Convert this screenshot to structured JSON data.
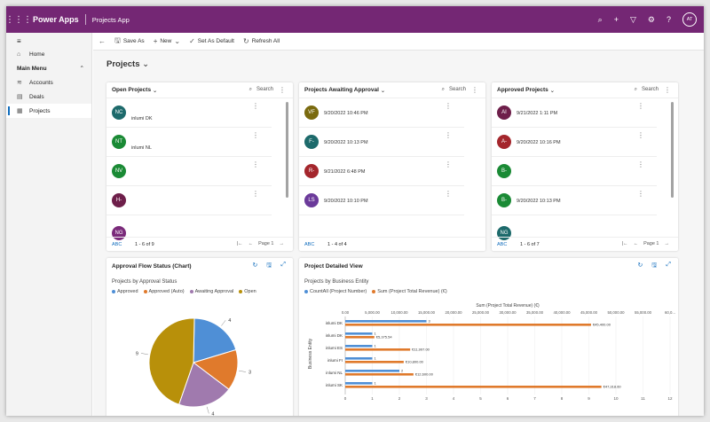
{
  "topbar": {
    "app_name": "Power Apps",
    "sub_name": "Projects App",
    "avatar": "AT"
  },
  "sidebar": {
    "home": "Home",
    "group": "Main Menu",
    "items": [
      {
        "label": "Accounts"
      },
      {
        "label": "Deals"
      },
      {
        "label": "Projects"
      }
    ]
  },
  "cmdbar": {
    "save_as": "Save As",
    "new": "New",
    "set_default": "Set As Default",
    "refresh": "Refresh All"
  },
  "page_title": "Projects",
  "lists": [
    {
      "title": "Open Projects",
      "search": "Search",
      "footer": "1 - 6 of 9",
      "page": "Page 1",
      "records": [
        {
          "initials": "NC",
          "color": "#1d6a6b",
          "l1": "",
          "l2": "inlumi DK"
        },
        {
          "initials": "NT",
          "color": "#1a8a35",
          "l1": "",
          "l2": "inlumi NL"
        },
        {
          "initials": "NV",
          "color": "#1a8a35",
          "l1": "",
          "l2": ""
        },
        {
          "initials": "H-",
          "color": "#6e1f4a",
          "l1": "",
          "l2": ""
        },
        {
          "initials": "NG",
          "color": "#7a2a7a",
          "l1": "",
          "l2": ""
        }
      ]
    },
    {
      "title": "Projects Awaiting Approval",
      "search": "Search",
      "footer": "1 - 4 of 4",
      "page": "",
      "records": [
        {
          "initials": "VF",
          "color": "#7a6a0f",
          "l1": "9/20/2022 10:46 PM",
          "l2": ""
        },
        {
          "initials": "F-",
          "color": "#1d6a6b",
          "l1": "9/20/2022 10:13 PM",
          "l2": ""
        },
        {
          "initials": "R-",
          "color": "#a4262c",
          "l1": "9/21/2022 6:48 PM",
          "l2": ""
        },
        {
          "initials": "LS",
          "color": "#6b3a9a",
          "l1": "9/20/2022 10:10 PM",
          "l2": ""
        }
      ]
    },
    {
      "title": "Approved Projects",
      "search": "Search",
      "footer": "1 - 6 of 7",
      "page": "Page 1",
      "records": [
        {
          "initials": "AI",
          "color": "#6e1f4a",
          "l1": "9/21/2022 1:11 PM",
          "l2": ""
        },
        {
          "initials": "A-",
          "color": "#a4262c",
          "l1": "9/20/2022 10:16 PM",
          "l2": ""
        },
        {
          "initials": "B-",
          "color": "#1a8a35",
          "l1": "",
          "l2": ""
        },
        {
          "initials": "B-",
          "color": "#1a8a35",
          "l1": "9/20/2022 10:13 PM",
          "l2": ""
        },
        {
          "initials": "NG",
          "color": "#1d6a6b",
          "l1": "",
          "l2": ""
        }
      ]
    }
  ],
  "pie_card": {
    "title": "Approval Flow Status (Chart)",
    "subtitle": "Projects by Approval Status"
  },
  "bar_card": {
    "title": "Project Detailed View",
    "subtitle": "Projects by Business Entity"
  },
  "chart_data": [
    {
      "type": "pie",
      "title": "Projects by Approval Status",
      "series": [
        {
          "name": "Approved",
          "value": 4,
          "color": "#4f8fd6"
        },
        {
          "name": "Approved (Auto)",
          "value": 3,
          "color": "#e07a2c"
        },
        {
          "name": "Awaiting Approval",
          "value": 4,
          "color": "#a07aae"
        },
        {
          "name": "Open",
          "value": 9,
          "color": "#b8900a"
        }
      ]
    },
    {
      "type": "bar",
      "title": "Projects by Business Entity",
      "categories": [
        "inlumi DK",
        "inlumi DK",
        "inlumi ES",
        "inlumi FI",
        "inlumi NL",
        "inlumi SK"
      ],
      "ylabel": "Business Entity",
      "x2label": "Sum (Project Total Revenue) (€)",
      "series": [
        {
          "name": "CountAll (Project Number)",
          "color": "#4f8fd6",
          "values": [
            3,
            1,
            1,
            1,
            2,
            1
          ],
          "labels": [
            "3",
            "1",
            "1",
            "1",
            "2",
            "1"
          ]
        },
        {
          "name": "Sum (Project Total Revenue) (€)",
          "color": "#e07a2c",
          "values": [
            45400,
            5375.54,
            11997,
            10800,
            12600,
            47318.6
          ],
          "labels": [
            "€45,400.00",
            "€5,375.54",
            "€11,997.00",
            "€10,800.00",
            "€12,600.00",
            "€47,318.60"
          ]
        }
      ],
      "x_ticks": [
        "0",
        "1",
        "2",
        "3",
        "4",
        "5",
        "6",
        "7",
        "8",
        "9",
        "10",
        "11",
        "12"
      ],
      "x2_ticks": [
        "0.00",
        "5,000.00",
        "10,000.00",
        "15,000.00",
        "20,000.00",
        "25,000.00",
        "30,000.00",
        "35,000.00",
        "40,000.00",
        "45,000.00",
        "50,000.00",
        "55,000.00",
        "60,0..."
      ],
      "xlim": [
        0,
        12
      ],
      "x2lim": [
        0,
        60000
      ]
    }
  ]
}
